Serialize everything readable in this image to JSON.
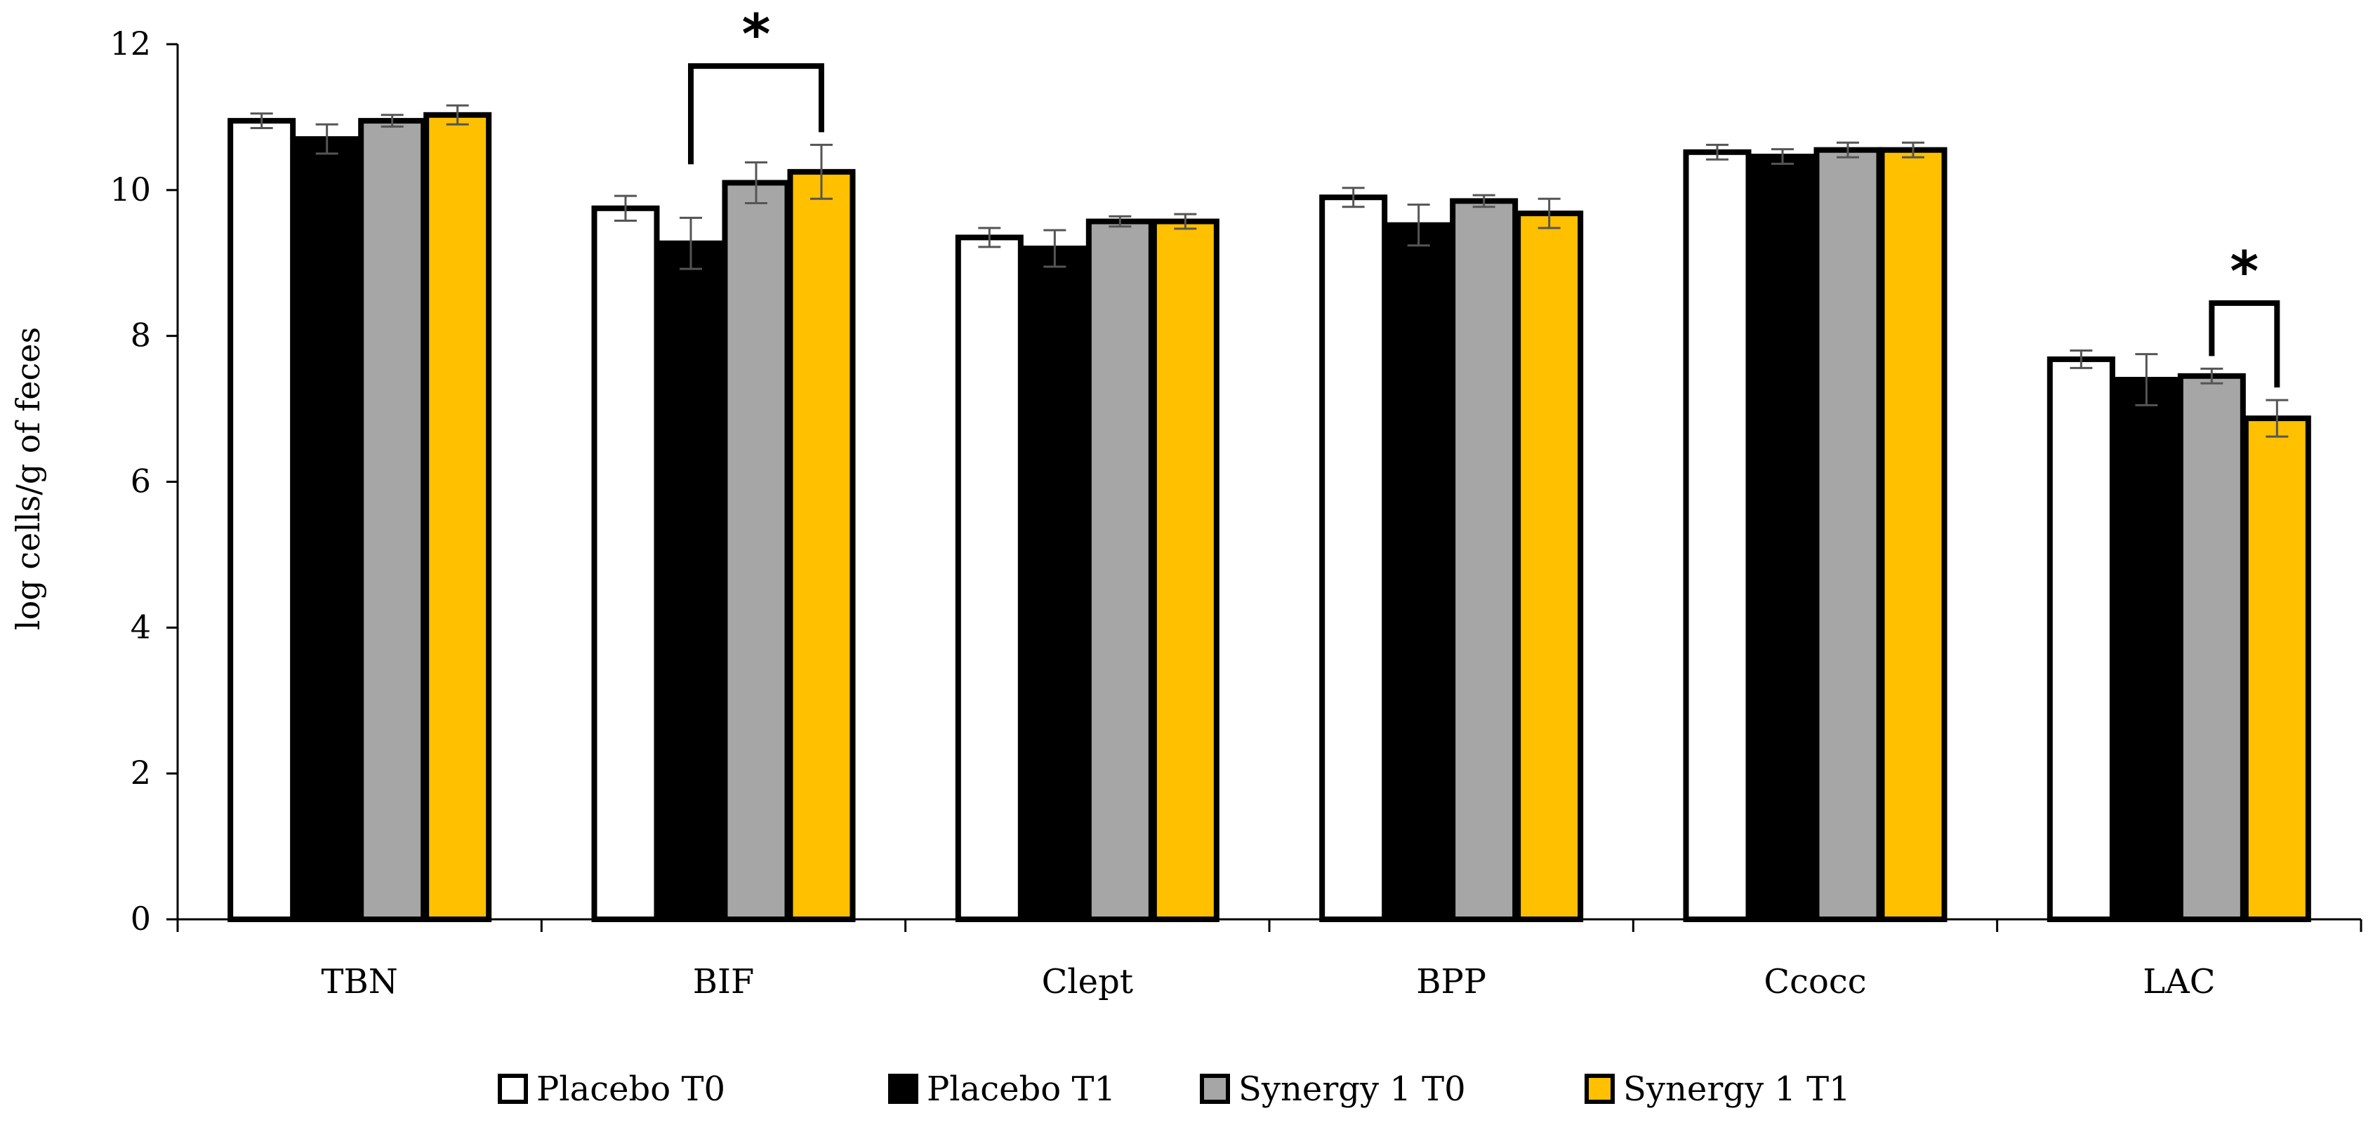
{
  "chart_data": {
    "type": "bar",
    "title": "",
    "xlabel": "",
    "ylabel": "log cells/g of feces",
    "ylim": [
      0,
      12
    ],
    "yticks": [
      "0",
      "2",
      "4",
      "6",
      "8",
      "10",
      "12"
    ],
    "grid": false,
    "legend_position": "bottom",
    "categories": [
      "TBN",
      "BIF",
      "Clept",
      "BPP",
      "Ccocc",
      "LAC"
    ],
    "series": [
      {
        "name": "Placebo T0",
        "color": "#ffffff",
        "values": [
          10.95,
          9.75,
          9.35,
          9.9,
          10.52,
          7.68
        ],
        "errors": [
          0.1,
          0.17,
          0.13,
          0.13,
          0.1,
          0.12
        ]
      },
      {
        "name": "Placebo T1",
        "color": "#000000",
        "values": [
          10.7,
          9.27,
          9.2,
          9.52,
          10.46,
          7.4
        ],
        "errors": [
          0.2,
          0.35,
          0.25,
          0.28,
          0.1,
          0.35
        ]
      },
      {
        "name": "Synergy 1 T0",
        "color": "#a6a6a6",
        "values": [
          10.95,
          10.1,
          9.57,
          9.85,
          10.55,
          7.45
        ],
        "errors": [
          0.08,
          0.28,
          0.07,
          0.08,
          0.1,
          0.1
        ]
      },
      {
        "name": "Synergy 1 T1",
        "color": "#ffc000",
        "values": [
          11.03,
          10.25,
          9.57,
          9.68,
          10.55,
          6.87
        ],
        "errors": [
          0.13,
          0.37,
          0.1,
          0.2,
          0.1,
          0.25
        ]
      }
    ],
    "annotations": [
      {
        "label": "*",
        "category": "BIF",
        "from_series": 1,
        "to_series": 3,
        "y": 11.7
      },
      {
        "label": "*",
        "category": "LAC",
        "from_series": 2,
        "to_series": 3,
        "y": 8.45
      }
    ]
  }
}
